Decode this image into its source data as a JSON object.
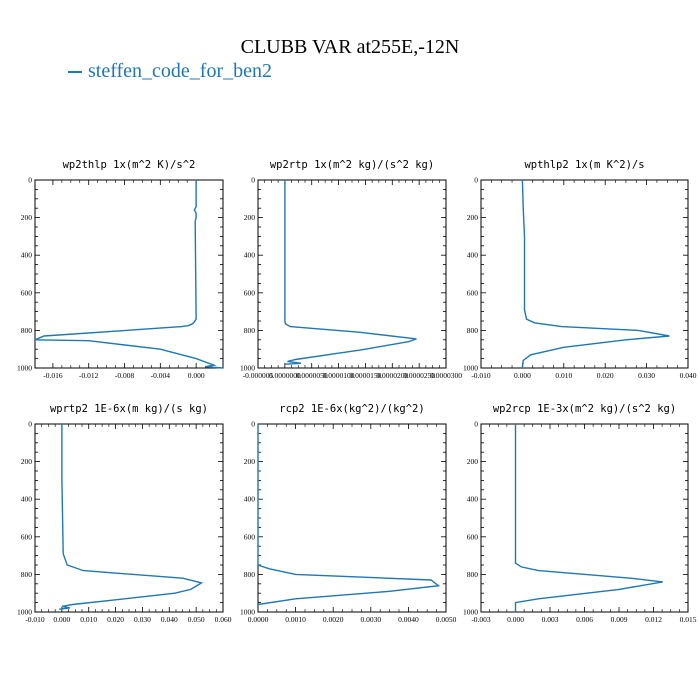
{
  "title": "CLUBB VAR at255E,-12N",
  "legend": {
    "label": "steffen_code_for_ben2",
    "color": "#1f77b4"
  },
  "chart_data": [
    {
      "type": "line",
      "title": "wp2thlp   1x(m^2 K)/s^2",
      "xlim": [
        -0.018,
        0.003
      ],
      "ylim": [
        1000,
        0
      ],
      "xticks": [
        "-0.016",
        "-0.012",
        "-0.008",
        "-0.004",
        "0.000"
      ],
      "xtick_values": [
        -0.016,
        -0.012,
        -0.008,
        -0.004,
        0.0
      ],
      "yticks": [
        "0",
        "200",
        "400",
        "600",
        "800",
        "1000"
      ],
      "series": [
        {
          "x": [
            0.0,
            0.0,
            -0.0002,
            0.0,
            0.0,
            -0.0001,
            0.0,
            -0.0002,
            -0.0004,
            -0.0009,
            -0.0016,
            -0.017,
            -0.018,
            -0.012,
            -0.004,
            0.0,
            0.002,
            0.001,
            0.003
          ],
          "y": [
            0,
            140,
            160,
            175,
            200,
            220,
            740,
            755,
            765,
            775,
            780,
            830,
            850,
            855,
            900,
            950,
            985,
            993,
            1000
          ]
        }
      ]
    },
    {
      "type": "line",
      "title": "wp2rtp   1x(m^2 kg)/(s^2 kg)",
      "xlim": [
        -5e-06,
        3e-05
      ],
      "ylim": [
        1000,
        0
      ],
      "xticks": [
        "-0.000005",
        "0.0000000",
        "0.0000050",
        "0.0000100",
        "0.0000150",
        "0.0000200",
        "0.0000250",
        "0.0000300"
      ],
      "xtick_values": [
        -5e-06,
        0.0,
        5e-06,
        1e-05,
        1.5e-05,
        2e-05,
        2.5e-05,
        3e-05
      ],
      "yticks": [
        "0",
        "200",
        "400",
        "600",
        "800",
        "1000"
      ],
      "series": [
        {
          "x": [
            0.0,
            0.0,
            0.0,
            0.0,
            1e-07,
            1e-06,
            1.4e-05,
            2.45e-05,
            2.3e-05,
            1.4e-05,
            9e-06,
            2e-06,
            5e-07,
            3e-06,
            0.0
          ],
          "y": [
            0,
            300,
            600,
            750,
            765,
            780,
            810,
            845,
            860,
            905,
            925,
            955,
            965,
            975,
            980
          ]
        }
      ]
    },
    {
      "type": "line",
      "title": "wpthlp2   1x(m K^2)/s",
      "xlim": [
        -0.01,
        0.04
      ],
      "ylim": [
        1000,
        0
      ],
      "xticks": [
        "-0.010",
        "0.000",
        "0.010",
        "0.020",
        "0.030",
        "0.040"
      ],
      "xtick_values": [
        -0.01,
        0.0,
        0.01,
        0.02,
        0.03,
        0.04
      ],
      "yticks": [
        "0",
        "200",
        "400",
        "600",
        "800",
        "1000"
      ],
      "series": [
        {
          "x": [
            0.0,
            0.0002,
            0.0005,
            0.0005,
            0.001,
            0.003,
            0.0095,
            0.028,
            0.0355,
            0.025,
            0.01,
            0.002,
            0.0002,
            0.0
          ],
          "y": [
            0,
            150,
            300,
            690,
            740,
            760,
            780,
            800,
            830,
            850,
            890,
            930,
            960,
            1000
          ]
        }
      ]
    },
    {
      "type": "line",
      "title": "wprtp2   1E-6x(m kg)/(s kg)",
      "xlim": [
        -0.01,
        0.06
      ],
      "ylim": [
        1000,
        0
      ],
      "xticks": [
        "-0.010",
        "0.000",
        "0.010",
        "0.020",
        "0.030",
        "0.040",
        "0.050",
        "0.060"
      ],
      "xtick_values": [
        -0.01,
        0.0,
        0.01,
        0.02,
        0.03,
        0.04,
        0.05,
        0.06
      ],
      "yticks": [
        "0",
        "200",
        "400",
        "600",
        "800",
        "1000"
      ],
      "series": [
        {
          "x": [
            0.0,
            0.0,
            0.0005,
            0.002,
            0.008,
            0.045,
            0.052,
            0.048,
            0.042,
            0.02,
            0.004,
            0.0,
            0.003,
            -0.001
          ],
          "y": [
            0,
            300,
            690,
            750,
            780,
            820,
            845,
            880,
            900,
            935,
            960,
            970,
            978,
            985
          ]
        }
      ]
    },
    {
      "type": "line",
      "title": "rcp2   1E-6x(kg^2)/(kg^2)",
      "xlim": [
        0.0,
        0.005
      ],
      "ylim": [
        1000,
        0
      ],
      "xticks": [
        "0.0000",
        "0.0010",
        "0.0020",
        "0.0030",
        "0.0040",
        "0.0050"
      ],
      "xtick_values": [
        0.0,
        0.001,
        0.002,
        0.003,
        0.004,
        0.005
      ],
      "yticks": [
        "0",
        "200",
        "400",
        "600",
        "800",
        "1000"
      ],
      "series": [
        {
          "x": [
            0.0,
            0.0,
            0.0,
            0.0003,
            0.001,
            0.0046,
            0.0048,
            0.0035,
            0.001,
            0.0
          ],
          "y": [
            0,
            300,
            750,
            770,
            800,
            830,
            860,
            890,
            930,
            960
          ]
        }
      ]
    },
    {
      "type": "line",
      "title": "wp2rcp   1E-3x(m^2 kg)/(s^2 kg)",
      "xlim": [
        -0.003,
        0.015
      ],
      "ylim": [
        1000,
        0
      ],
      "xticks": [
        "-0.003",
        "0.000",
        "0.003",
        "0.006",
        "0.009",
        "0.012",
        "0.015"
      ],
      "xtick_values": [
        -0.003,
        0.0,
        0.003,
        0.006,
        0.009,
        0.012,
        0.015
      ],
      "yticks": [
        "0",
        "200",
        "400",
        "600",
        "800",
        "1000"
      ],
      "series": [
        {
          "x": [
            0.0,
            0.0,
            0.0,
            0.0005,
            0.002,
            0.01,
            0.0128,
            0.009,
            0.002,
            0.0,
            0.0
          ],
          "y": [
            0,
            300,
            740,
            760,
            780,
            820,
            840,
            880,
            930,
            950,
            1000
          ]
        }
      ]
    }
  ]
}
